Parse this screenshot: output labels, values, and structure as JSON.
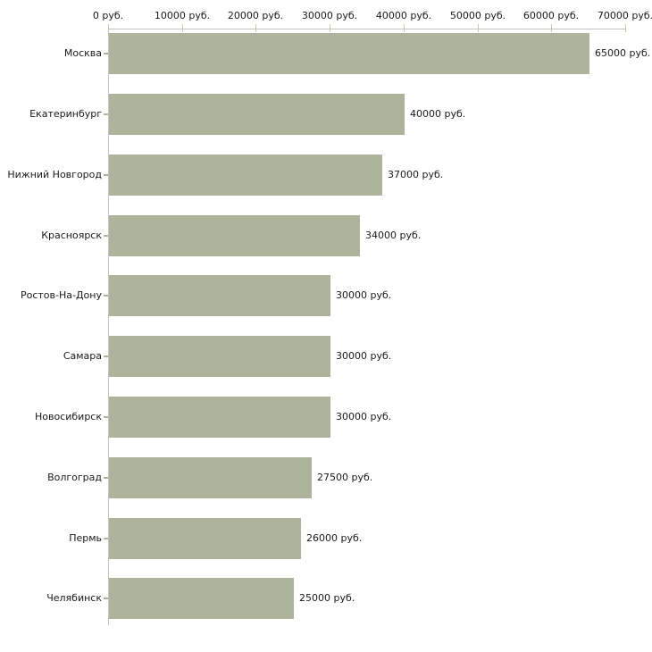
{
  "chart_data": {
    "type": "bar",
    "orientation": "horizontal",
    "title": "",
    "xlabel": "",
    "ylabel": "",
    "unit": "руб.",
    "categories": [
      "Москва",
      "Екатеринбург",
      "Нижний Новгород",
      "Красноярск",
      "Ростов-На-Дону",
      "Самара",
      "Новосибирск",
      "Волгоград",
      "Пермь",
      "Челябинск"
    ],
    "values": [
      65000,
      40000,
      37000,
      34000,
      30000,
      30000,
      30000,
      27500,
      26000,
      25000
    ],
    "value_labels": [
      "65000 руб.",
      "40000 руб.",
      "37000 руб.",
      "34000 руб.",
      "30000 руб.",
      "30000 руб.",
      "30000 руб.",
      "27500 руб.",
      "26000 руб.",
      "25000 руб."
    ],
    "x_ticks": [
      0,
      10000,
      20000,
      30000,
      40000,
      50000,
      60000,
      70000
    ],
    "x_tick_labels": [
      "0 руб.",
      "10000 руб.",
      "20000 руб.",
      "30000 руб.",
      "40000 руб.",
      "50000 руб.",
      "60000 руб.",
      "70000 руб."
    ],
    "xlim": [
      0,
      70000
    ],
    "grid": false,
    "legend": false,
    "axis_position": "top",
    "colors": {
      "bar": "#aeb49b",
      "axis_line": "#c2c2c2",
      "x_tick": "#c8c8a8",
      "category_tick": "#b2b292",
      "text": "#1a1a1a",
      "background": "#ffffff"
    }
  }
}
